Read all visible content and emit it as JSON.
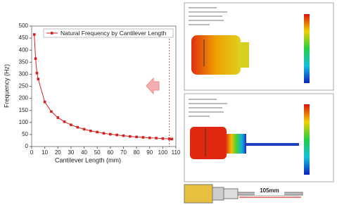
{
  "chart_data": {
    "type": "line",
    "xlabel": "Cantilever Length (mm)",
    "ylabel": "Frequency (Hz)",
    "x": [
      2,
      3,
      4,
      5,
      10,
      15,
      20,
      25,
      30,
      35,
      40,
      45,
      50,
      55,
      60,
      65,
      70,
      75,
      80,
      85,
      90,
      95,
      100,
      105,
      107
    ],
    "series": [
      {
        "name": "Natural Frequency by Cantilever Length",
        "color": "#d42020",
        "values": [
          465,
          365,
          305,
          280,
          185,
          145,
          120,
          103,
          90,
          80,
          72,
          65,
          60,
          55,
          51,
          48,
          45,
          42,
          40,
          38,
          36,
          35,
          33,
          32,
          31
        ]
      }
    ],
    "xlim": [
      0,
      110
    ],
    "xticks": [
      0,
      10,
      20,
      30,
      40,
      50,
      60,
      70,
      80,
      90,
      100,
      110
    ],
    "ylim": [
      0,
      500
    ],
    "yticks": [
      0,
      50,
      100,
      150,
      200,
      250,
      300,
      350,
      400,
      450,
      500
    ],
    "reference_x": 105,
    "grid": false,
    "legend": "upper right"
  },
  "figure_labels": {
    "dimension": "105mm"
  }
}
